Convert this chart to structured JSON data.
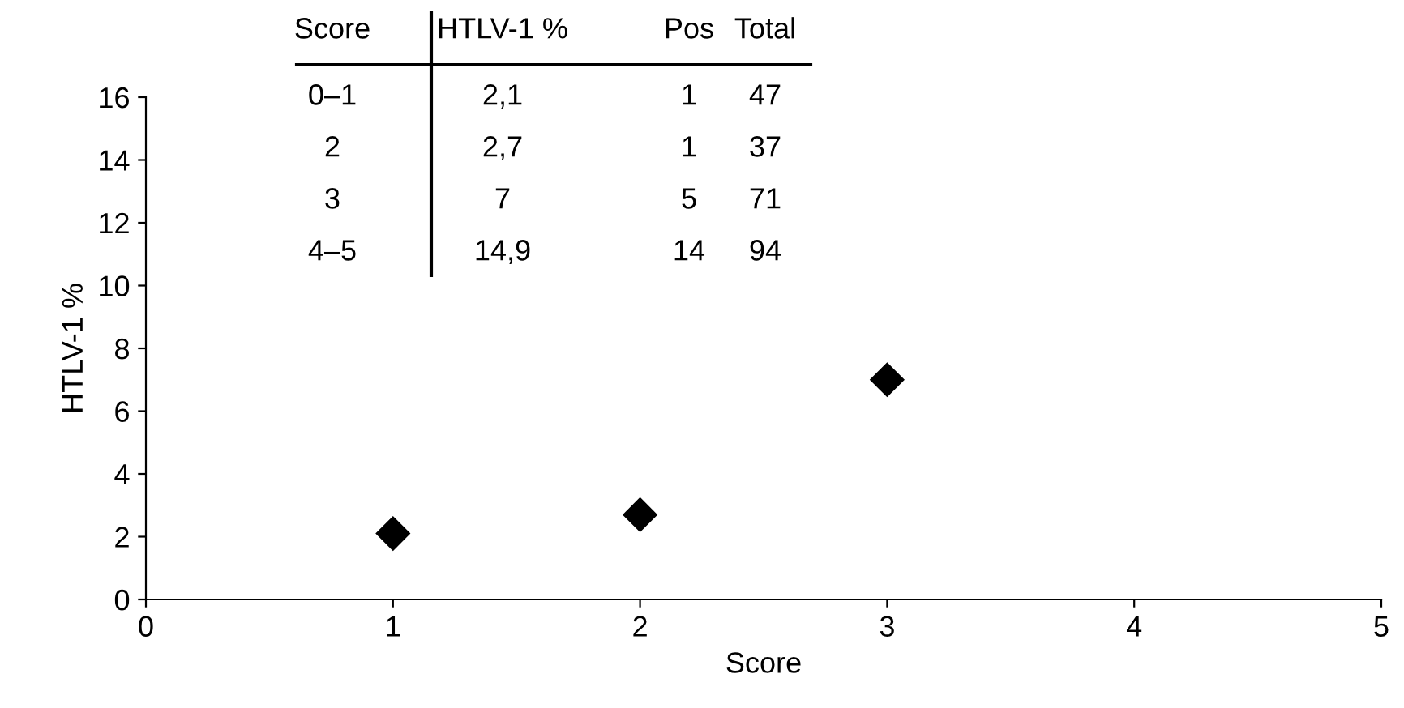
{
  "chart_data": {
    "type": "scatter",
    "xlabel": "Score",
    "ylabel": "HTLV-1 %",
    "x": [
      1,
      2,
      3
    ],
    "series": [
      {
        "color": "#000000",
        "values": [
          2.1,
          2.7,
          7
        ]
      }
    ],
    "marker": "diamond",
    "xlim": [
      0,
      5
    ],
    "xticks": [
      0,
      1,
      2,
      3,
      4,
      5
    ],
    "ylim": [
      0,
      16
    ],
    "yticks": [
      0,
      2,
      4,
      6,
      8,
      10,
      12,
      14,
      16
    ],
    "grid": false,
    "legend": false,
    "annotations": [
      "Score",
      "HTLV-1 %",
      "Pos",
      "Total",
      "0–1",
      "2,1",
      "1",
      "47",
      "2",
      "2,7",
      "1",
      "37",
      "3",
      "7",
      "5",
      "71",
      "4–5",
      "14,9",
      "14",
      "94"
    ]
  }
}
